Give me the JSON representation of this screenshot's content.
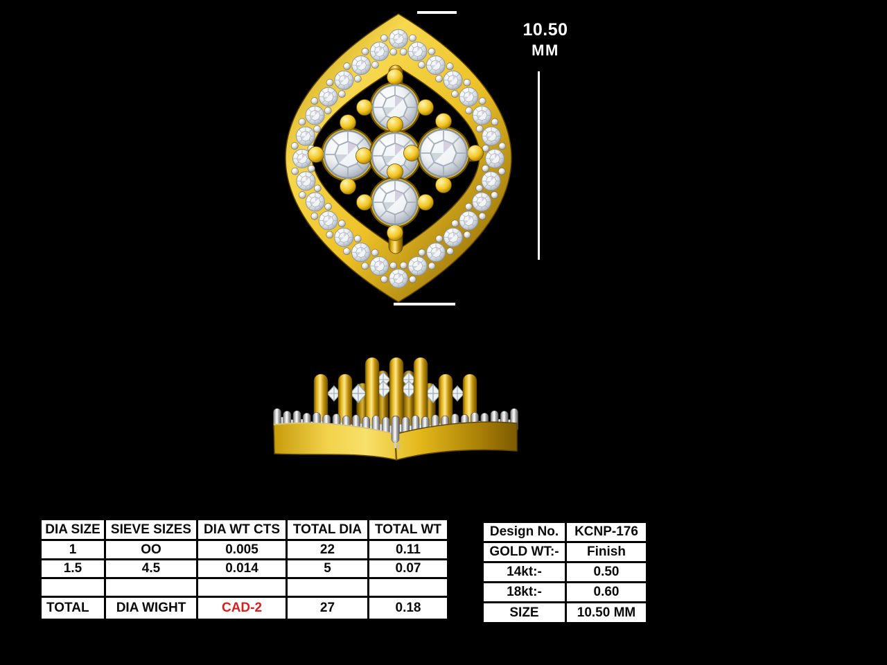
{
  "scene": {
    "background": "#000000",
    "dimension": {
      "value": "10.50",
      "unit": "MM"
    }
  },
  "diamond_table": {
    "headers": [
      "DIA SIZE",
      "SIEVE SIZES",
      "DIA WT CTS",
      "TOTAL DIA",
      "TOTAL WT"
    ],
    "rows": [
      [
        "1",
        "OO",
        "0.005",
        "22",
        "0.11"
      ],
      [
        "1.5",
        "4.5",
        "0.014",
        "5",
        "0.07"
      ],
      [
        "",
        "",
        "",
        "",
        ""
      ],
      [
        "TOTAL",
        "DIA WIGHT",
        "CAD-2",
        "27",
        "0.18"
      ]
    ],
    "cad_label_color": "#d81f1f"
  },
  "spec_table": {
    "rows": [
      {
        "label": "Design No.",
        "value": "KCNP-176"
      },
      {
        "label": "GOLD WT:-",
        "value": "Finish"
      },
      {
        "label": "14kt:-",
        "value": "0.50"
      },
      {
        "label": "18kt:-",
        "value": "0.60"
      },
      {
        "label": "SIZE",
        "value": "10.50 MM"
      }
    ]
  },
  "materials": {
    "gold_color": "#eec227",
    "diamond_color": "#edf1f3",
    "silver_color": "#d5d5d5"
  }
}
